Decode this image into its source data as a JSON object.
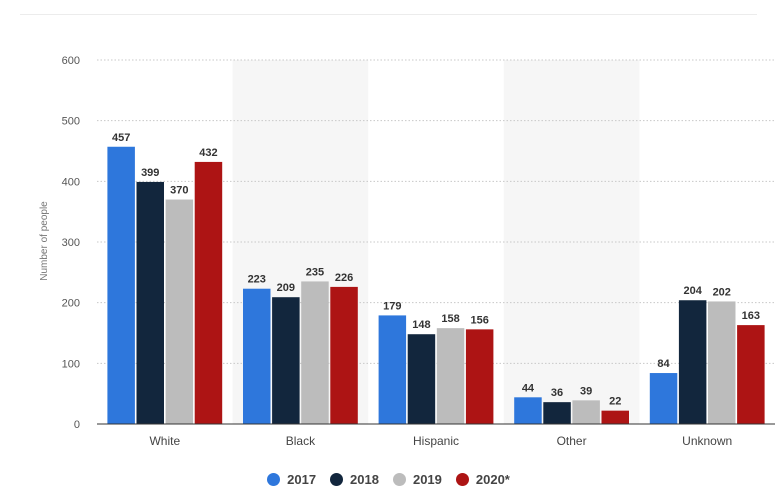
{
  "chart_data": {
    "type": "bar",
    "categories": [
      "White",
      "Black",
      "Hispanic",
      "Other",
      "Unknown"
    ],
    "series": [
      {
        "name": "2017",
        "values": [
          457,
          223,
          179,
          44,
          84
        ],
        "color": "#2e77dc"
      },
      {
        "name": "2018",
        "values": [
          399,
          209,
          148,
          36,
          204
        ],
        "color": "#12263d"
      },
      {
        "name": "2019",
        "values": [
          370,
          235,
          158,
          39,
          202
        ],
        "color": "#bcbcbc"
      },
      {
        "name": "2020*",
        "values": [
          432,
          226,
          156,
          22,
          163
        ],
        "color": "#ad1414"
      }
    ],
    "ylabel": "Number of people",
    "xlabel": "",
    "ylim": [
      0,
      600
    ],
    "yticks": [
      0,
      100,
      200,
      300,
      400,
      500,
      600
    ],
    "grid": true,
    "legend": "bottom-center"
  }
}
